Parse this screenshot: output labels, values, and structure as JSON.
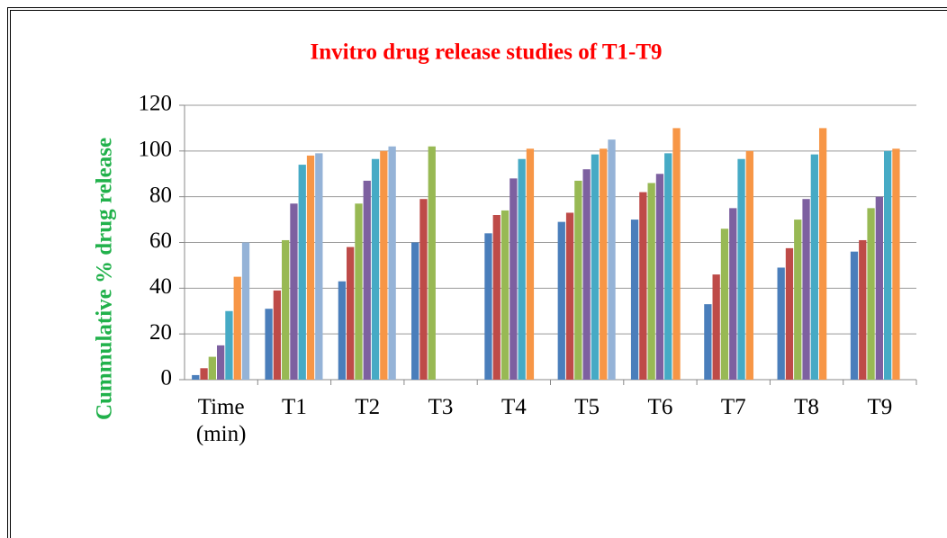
{
  "chart_data": {
    "type": "bar",
    "title": "Invitro drug release studies of T1-T9",
    "y_label": "Cummulative %  drug release",
    "categories": [
      "Time (min)",
      "T1",
      "T2",
      "T3",
      "T4",
      "T5",
      "T6",
      "T7",
      "T8",
      "T9"
    ],
    "series": [
      {
        "color": "#4a7ebb",
        "values": [
          2,
          31,
          43,
          60,
          64,
          69,
          70,
          33,
          49,
          56
        ]
      },
      {
        "color": "#be4b48",
        "values": [
          5,
          39,
          58,
          79,
          72,
          73,
          82,
          46,
          57.5,
          61
        ]
      },
      {
        "color": "#98b954",
        "values": [
          10,
          61,
          77,
          102,
          74,
          87,
          86,
          66,
          70,
          75
        ]
      },
      {
        "color": "#7d60a0",
        "values": [
          15,
          77,
          87,
          null,
          88,
          92,
          90,
          75,
          79,
          80
        ]
      },
      {
        "color": "#46aac5",
        "values": [
          30,
          94,
          96.5,
          null,
          96.5,
          98.5,
          99,
          96.5,
          98.5,
          100
        ]
      },
      {
        "color": "#f79646",
        "values": [
          45,
          98,
          100,
          null,
          101,
          101,
          110,
          100,
          110,
          101
        ]
      },
      {
        "color": "#95b3d7",
        "values": [
          60,
          99,
          102,
          null,
          null,
          105,
          null,
          null,
          null,
          null
        ]
      }
    ],
    "ylim": [
      0,
      120
    ],
    "yticks": [
      0,
      20,
      40,
      60,
      80,
      100,
      120
    ],
    "grid": true
  }
}
